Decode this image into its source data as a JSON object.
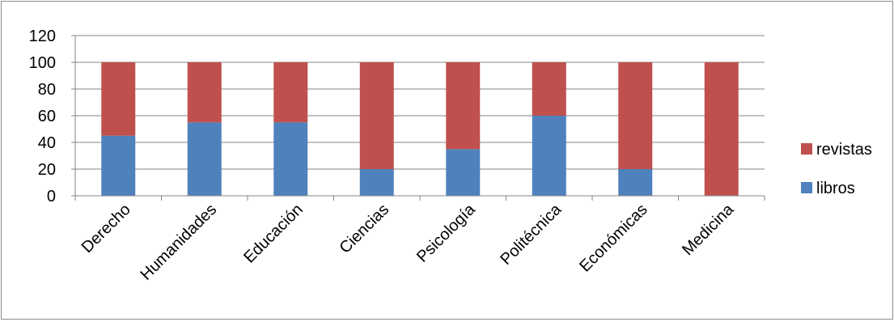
{
  "chart_data": {
    "type": "bar",
    "stacked": true,
    "categories": [
      "Derecho",
      "Humanidades",
      "Educación",
      "Ciencias",
      "Psicología",
      "Politécnica",
      "Económicas",
      "Medicina"
    ],
    "series": [
      {
        "name": "libros",
        "color": "#4f81bd",
        "values": [
          45,
          55,
          55,
          20,
          35,
          60,
          20,
          0
        ]
      },
      {
        "name": "revistas",
        "color": "#c0504d",
        "values": [
          55,
          45,
          45,
          80,
          65,
          40,
          80,
          100
        ]
      }
    ],
    "ylim": [
      0,
      120
    ],
    "yticks": [
      "0",
      "20",
      "40",
      "60",
      "80",
      "100",
      "120"
    ],
    "grid": true,
    "legend_position": "right",
    "legend_order": [
      "revistas",
      "libros"
    ],
    "title": "",
    "xlabel": "",
    "ylabel": ""
  }
}
